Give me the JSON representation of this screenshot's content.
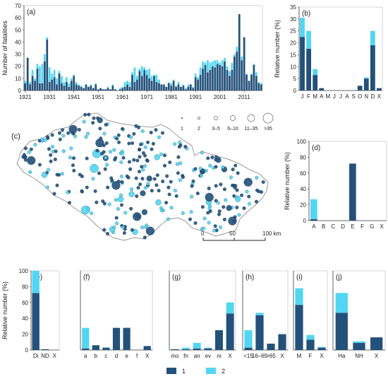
{
  "colors": {
    "s1": "#23517a",
    "s2": "#52d6f2",
    "axis": "#444444",
    "map_fill": "#ffffff",
    "map_border": "#999999"
  },
  "chart_data": [
    {
      "id": "a",
      "type": "bar",
      "panel_label": "(a)",
      "ylabel": "Number of fatalities",
      "xlabel": "",
      "ylim": [
        0,
        70
      ],
      "yticks": [
        0,
        10,
        20,
        30,
        40,
        50,
        60,
        70
      ],
      "x_start": 1921,
      "x_end": 2018,
      "xtick_labels": [
        "1921",
        "1931",
        "1941",
        "1951",
        "1961",
        "1971",
        "1981",
        "1991",
        "2001",
        "2011"
      ],
      "series": [
        {
          "name": "1",
          "values": [
            6,
            27,
            5,
            12,
            8,
            18,
            6,
            6,
            24,
            42,
            7,
            9,
            11,
            5,
            14,
            6,
            4,
            7,
            3,
            8,
            12,
            5,
            4,
            3,
            2,
            5,
            3,
            4,
            2,
            5,
            1,
            2,
            1,
            1,
            2,
            1,
            4,
            1,
            0,
            1,
            2,
            3,
            5,
            3,
            13,
            7,
            9,
            16,
            12,
            17,
            13,
            10,
            8,
            12,
            7,
            6,
            5,
            5,
            3,
            6,
            4,
            8,
            3,
            5,
            3,
            4,
            1,
            3,
            5,
            2,
            11,
            9,
            13,
            18,
            21,
            15,
            17,
            20,
            19,
            22,
            21,
            20,
            24,
            17,
            12,
            17,
            28,
            32,
            63,
            25,
            44,
            13,
            8,
            13,
            21,
            12,
            6,
            5
          ]
        },
        {
          "name": "2",
          "values": [
            2,
            0,
            2,
            5,
            2,
            4,
            14,
            16,
            6,
            2,
            12,
            5,
            6,
            5,
            2,
            6,
            3,
            4,
            3,
            2,
            1,
            2,
            1,
            1,
            0,
            0,
            0,
            1,
            0,
            1,
            0,
            0,
            0,
            0,
            1,
            0,
            1,
            0,
            0,
            1,
            1,
            4,
            3,
            4,
            2,
            12,
            3,
            2,
            8,
            2,
            4,
            8,
            4,
            1,
            6,
            3,
            0,
            0,
            0,
            1,
            2,
            1,
            1,
            2,
            0,
            1,
            1,
            2,
            0,
            1,
            3,
            2,
            6,
            6,
            2,
            10,
            6,
            4,
            6,
            3,
            2,
            5,
            3,
            3,
            4,
            6,
            2,
            4,
            0,
            3,
            0,
            1,
            0,
            1,
            1,
            3,
            1,
            1
          ]
        }
      ]
    },
    {
      "id": "b",
      "type": "bar",
      "panel_label": "(b)",
      "ylabel": "Relative number (%)",
      "xlabel": "",
      "ylim": [
        0,
        35
      ],
      "yticks": [
        0,
        5,
        10,
        15,
        20,
        25,
        30,
        35
      ],
      "categories": [
        "J",
        "F",
        "M",
        "A",
        "M",
        "J",
        "J",
        "A",
        "S",
        "O",
        "N",
        "D",
        "X"
      ],
      "series": [
        {
          "name": "1",
          "values": [
            22.5,
            17.5,
            6.5,
            1,
            0,
            0,
            0,
            0,
            0,
            2,
            5,
            19,
            1
          ]
        },
        {
          "name": "2",
          "values": [
            8,
            7.5,
            2.5,
            0,
            0,
            0,
            0,
            0,
            0,
            0,
            0.5,
            6,
            0
          ]
        }
      ]
    },
    {
      "id": "d",
      "type": "bar",
      "panel_label": "(d)",
      "ylabel": "Relative number (%)",
      "xlabel": "",
      "ylim": [
        0,
        100
      ],
      "yticks": [
        0,
        20,
        40,
        60,
        80,
        100
      ],
      "categories": [
        "A",
        "B",
        "C",
        "D",
        "E",
        "F",
        "G",
        "X"
      ],
      "series": [
        {
          "name": "1",
          "values": [
            2,
            0,
            0,
            0,
            72,
            0,
            0,
            0
          ]
        },
        {
          "name": "2",
          "values": [
            25,
            0,
            0,
            0,
            0,
            0,
            0,
            0
          ]
        }
      ]
    },
    {
      "id": "e",
      "type": "bar",
      "panel_label": "(e)",
      "ylabel": "Relative number (%)",
      "xlabel": "",
      "ylim": [
        0,
        100
      ],
      "yticks": [
        0,
        20,
        40,
        60,
        80,
        100
      ],
      "categories": [
        "Di",
        "ND",
        "X"
      ],
      "series": [
        {
          "name": "1",
          "values": [
            72,
            1,
            0
          ]
        },
        {
          "name": "2",
          "values": [
            28,
            0,
            0
          ]
        }
      ]
    },
    {
      "id": "f",
      "type": "bar",
      "panel_label": "(f)",
      "ylabel": "",
      "xlabel": "",
      "ylim": [
        0,
        100
      ],
      "categories": [
        "a",
        "b",
        "c",
        "d",
        "e",
        "f",
        "X"
      ],
      "series": [
        {
          "name": "1",
          "values": [
            2,
            6,
            3,
            28,
            28,
            0,
            5
          ]
        },
        {
          "name": "2",
          "values": [
            26,
            0,
            0,
            0,
            0,
            0,
            0
          ]
        }
      ]
    },
    {
      "id": "g",
      "type": "bar",
      "panel_label": "(g)",
      "ylabel": "",
      "xlabel": "",
      "ylim": [
        0,
        100
      ],
      "categories": [
        "mo",
        "fn",
        "an",
        "ev",
        "ni",
        "X"
      ],
      "series": [
        {
          "name": "1",
          "values": [
            1,
            1,
            2,
            2,
            25,
            46
          ]
        },
        {
          "name": "2",
          "values": [
            0,
            2,
            7,
            1,
            0,
            14
          ]
        }
      ]
    },
    {
      "id": "h",
      "type": "bar",
      "panel_label": "(h)",
      "ylabel": "",
      "xlabel": "",
      "ylim": [
        0,
        100
      ],
      "categories": [
        "<15",
        "16–65",
        ">65",
        "X"
      ],
      "series": [
        {
          "name": "1",
          "values": [
            3,
            44,
            8,
            20
          ]
        },
        {
          "name": "2",
          "values": [
            22,
            3,
            0,
            0
          ]
        }
      ]
    },
    {
      "id": "i",
      "type": "bar",
      "panel_label": "(i)",
      "ylabel": "",
      "xlabel": "",
      "ylim": [
        0,
        100
      ],
      "categories": [
        "M",
        "F",
        "X"
      ],
      "series": [
        {
          "name": "1",
          "values": [
            57,
            13,
            3
          ]
        },
        {
          "name": "2",
          "values": [
            21,
            6,
            1
          ]
        }
      ]
    },
    {
      "id": "j",
      "type": "bar",
      "panel_label": "(j)",
      "ylabel": "",
      "xlabel": "",
      "ylim": [
        0,
        100
      ],
      "categories": [
        "Ha",
        "NH",
        "X"
      ],
      "series": [
        {
          "name": "1",
          "values": [
            47,
            9,
            16
          ]
        },
        {
          "name": "2",
          "values": [
            25,
            2,
            0
          ]
        }
      ]
    }
  ],
  "map": {
    "panel_label": "(c)",
    "size_legend": [
      "1",
      "2",
      "3–5",
      "6–10",
      "11–35",
      ">35"
    ],
    "scale_labels": [
      "0",
      "50",
      "100 km"
    ]
  },
  "legend": {
    "items": [
      "1",
      "2"
    ]
  }
}
